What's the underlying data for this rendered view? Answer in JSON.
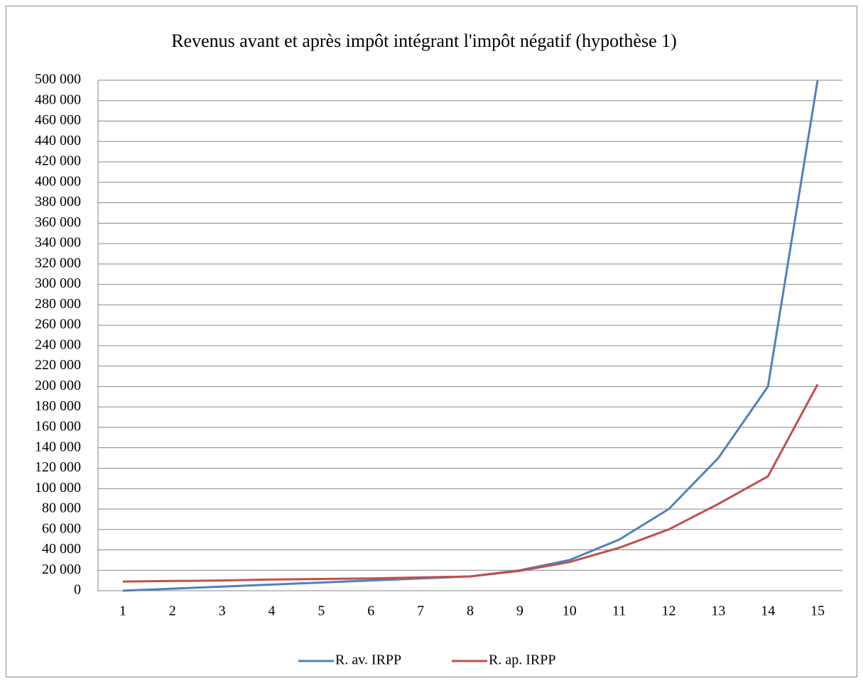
{
  "chart_data": {
    "type": "line",
    "title": "Revenus avant et après impôt intégrant l'impôt négatif (hypothèse 1)",
    "categories": [
      "1",
      "2",
      "3",
      "4",
      "5",
      "6",
      "7",
      "8",
      "9",
      "10",
      "11",
      "12",
      "13",
      "14",
      "15"
    ],
    "series": [
      {
        "name": "R. av. IRPP",
        "color": "#4f81bd",
        "values": [
          0,
          2000,
          4000,
          6000,
          8000,
          10000,
          12000,
          14000,
          20000,
          30000,
          50000,
          80000,
          130000,
          200000,
          500000
        ]
      },
      {
        "name": "R. ap. IRPP",
        "color": "#c0504d",
        "values": [
          9000,
          9500,
          10000,
          11000,
          11500,
          12000,
          13000,
          14000,
          19500,
          28000,
          42000,
          60000,
          85000,
          112000,
          202000
        ]
      }
    ],
    "ylim": [
      0,
      500000
    ],
    "yticks": [
      0,
      {
        "value": 20000,
        "label": "20 000"
      },
      {
        "value": 40000,
        "label": "40 000"
      },
      {
        "value": 60000,
        "label": "60 000"
      },
      {
        "value": 80000,
        "label": "80 000"
      },
      {
        "value": 100000,
        "label": "100 000"
      },
      {
        "value": 120000,
        "label": "120 000"
      },
      {
        "value": 140000,
        "label": "140 000"
      },
      {
        "value": 160000,
        "label": "160 000"
      },
      {
        "value": 180000,
        "label": "180 000"
      },
      {
        "value": 200000,
        "label": "200 000"
      },
      {
        "value": 220000,
        "label": "220 000"
      },
      {
        "value": 240000,
        "label": "240 000"
      },
      {
        "value": 260000,
        "label": "260 000"
      },
      {
        "value": 280000,
        "label": "280 000"
      },
      {
        "value": 300000,
        "label": "300 000"
      },
      {
        "value": 320000,
        "label": "320 000"
      },
      {
        "value": 340000,
        "label": "340 000"
      },
      {
        "value": 360000,
        "label": "360 000"
      },
      {
        "value": 380000,
        "label": "380 000"
      },
      {
        "value": 400000,
        "label": "400 000"
      },
      {
        "value": 420000,
        "label": "420 000"
      },
      {
        "value": 440000,
        "label": "440 000"
      },
      {
        "value": 460000,
        "label": "460 000"
      },
      {
        "value": 480000,
        "label": "480 000"
      },
      {
        "value": 500000,
        "label": "500 000"
      }
    ],
    "grid": true,
    "legend": "bottom"
  }
}
